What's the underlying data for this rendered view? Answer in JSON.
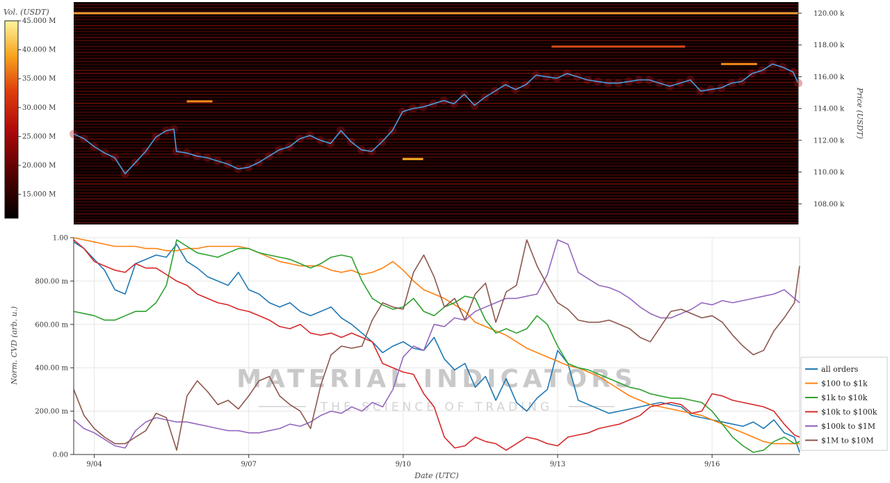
{
  "watermark": {
    "line1": "MATERIAL INDICATORS",
    "line2": "THE SCIENCE OF TRADING"
  },
  "colorbar": {
    "title": "Vol. (USDT)",
    "ticks": [
      "45.000 M",
      "40.000 M",
      "35.000 M",
      "30.000 M",
      "25.000 M",
      "20.000 M",
      "15.000 M"
    ]
  },
  "chart_data": [
    {
      "type": "heatmap",
      "ylabel": "Price (USDT)",
      "ylim": [
        106700,
        120700
      ],
      "yticks": [
        108000,
        110000,
        112000,
        114000,
        116000,
        118000,
        120000
      ],
      "ytick_labels": [
        "108.00 k",
        "110.00 k",
        "112.00 k",
        "114.00 k",
        "116.00 k",
        "118.00 k",
        "120.00 k"
      ],
      "xlim": [
        3.6,
        17.7
      ],
      "price_line": {
        "color": "#4a9de0",
        "x": [
          3.6,
          3.8,
          4.0,
          4.2,
          4.4,
          4.6,
          4.8,
          5.0,
          5.2,
          5.4,
          5.55,
          5.6,
          5.8,
          6.0,
          6.2,
          6.4,
          6.6,
          6.8,
          7.0,
          7.2,
          7.4,
          7.6,
          7.8,
          8.0,
          8.2,
          8.4,
          8.6,
          8.8,
          9.0,
          9.2,
          9.4,
          9.6,
          9.8,
          10.0,
          10.2,
          10.4,
          10.6,
          10.8,
          11.0,
          11.2,
          11.4,
          11.6,
          11.8,
          12.0,
          12.2,
          12.4,
          12.6,
          12.8,
          13.0,
          13.2,
          13.4,
          13.6,
          13.8,
          14.0,
          14.2,
          14.4,
          14.6,
          14.8,
          15.0,
          15.2,
          15.4,
          15.6,
          15.8,
          16.0,
          16.2,
          16.4,
          16.6,
          16.8,
          17.0,
          17.2,
          17.4,
          17.6,
          17.7
        ],
        "y": [
          112400,
          112100,
          111600,
          111200,
          110900,
          109900,
          110600,
          111300,
          112200,
          112600,
          112700,
          111300,
          111200,
          111000,
          110900,
          110700,
          110500,
          110200,
          110300,
          110600,
          111000,
          111400,
          111600,
          112100,
          112300,
          112000,
          111800,
          112600,
          111900,
          111400,
          111300,
          111900,
          112600,
          113800,
          114000,
          114100,
          114300,
          114500,
          114300,
          114900,
          114200,
          114700,
          115100,
          115500,
          115200,
          115500,
          116100,
          116000,
          115900,
          116200,
          116000,
          115800,
          115700,
          115600,
          115600,
          115700,
          115800,
          115800,
          115600,
          115400,
          115600,
          115800,
          115100,
          115200,
          115300,
          115600,
          115700,
          116200,
          116400,
          116800,
          116600,
          116300,
          115600
        ],
        "ylim": [
          106700,
          120700
        ]
      },
      "levels": [
        {
          "x": [
            5.8,
            6.3
          ],
          "y": 114450,
          "color": "#ff8c1a"
        },
        {
          "x": [
            10.0,
            10.4
          ],
          "y": 110820,
          "color": "#ffb020"
        },
        {
          "x": [
            16.2,
            16.9
          ],
          "y": 116800,
          "color": "#ff8c1a"
        },
        {
          "x": [
            3.6,
            17.7
          ],
          "y": 120000,
          "color": "#ff9a33"
        },
        {
          "x": [
            12.9,
            15.5
          ],
          "y": 117900,
          "color": "#d94a1a"
        }
      ]
    },
    {
      "type": "line",
      "xlabel": "Date (UTC)",
      "ylabel": "Norm. CVD (arb. u.)",
      "ylim": [
        0,
        1
      ],
      "xlim": [
        3.6,
        17.7
      ],
      "yticks": [
        0,
        0.2,
        0.4,
        0.6,
        0.8,
        1.0
      ],
      "ytick_labels": [
        "0.00",
        "200.00 m",
        "400.00 m",
        "600.00 m",
        "800.00 m",
        "1.00"
      ],
      "xticks": [
        4,
        7,
        10,
        13,
        16
      ],
      "xtick_labels": [
        "9/04",
        "9/07",
        "9/10",
        "9/13",
        "9/16"
      ],
      "grid": true,
      "legend_position": "bottom-right",
      "x": [
        3.6,
        3.8,
        4.0,
        4.2,
        4.4,
        4.6,
        4.8,
        5.0,
        5.2,
        5.4,
        5.6,
        5.8,
        6.0,
        6.2,
        6.4,
        6.6,
        6.8,
        7.0,
        7.2,
        7.4,
        7.6,
        7.8,
        8.0,
        8.2,
        8.4,
        8.6,
        8.8,
        9.0,
        9.2,
        9.4,
        9.6,
        9.8,
        10.0,
        10.2,
        10.4,
        10.6,
        10.8,
        11.0,
        11.2,
        11.4,
        11.6,
        11.8,
        12.0,
        12.2,
        12.4,
        12.6,
        12.8,
        13.0,
        13.2,
        13.4,
        13.6,
        13.8,
        14.0,
        14.2,
        14.4,
        14.6,
        14.8,
        15.0,
        15.2,
        15.4,
        15.6,
        15.8,
        16.0,
        16.2,
        16.4,
        16.6,
        16.8,
        17.0,
        17.2,
        17.4,
        17.6,
        17.7
      ],
      "series": [
        {
          "name": "all orders",
          "color": "#1f77b4",
          "values": [
            0.98,
            0.95,
            0.9,
            0.85,
            0.76,
            0.74,
            0.88,
            0.9,
            0.92,
            0.91,
            0.97,
            0.89,
            0.86,
            0.82,
            0.8,
            0.78,
            0.84,
            0.76,
            0.74,
            0.7,
            0.68,
            0.7,
            0.66,
            0.64,
            0.66,
            0.68,
            0.63,
            0.6,
            0.56,
            0.52,
            0.47,
            0.5,
            0.52,
            0.49,
            0.48,
            0.54,
            0.44,
            0.39,
            0.42,
            0.31,
            0.36,
            0.25,
            0.35,
            0.24,
            0.2,
            0.26,
            0.3,
            0.48,
            0.42,
            0.25,
            0.23,
            0.21,
            0.19,
            0.2,
            0.21,
            0.22,
            0.23,
            0.24,
            0.23,
            0.22,
            0.18,
            0.17,
            0.16,
            0.15,
            0.14,
            0.13,
            0.15,
            0.12,
            0.16,
            0.1,
            0.08,
            0.01
          ]
        },
        {
          "name": "$100 to $1k",
          "color": "#ff7f0e",
          "values": [
            1.0,
            0.99,
            0.98,
            0.97,
            0.96,
            0.96,
            0.96,
            0.95,
            0.95,
            0.94,
            0.94,
            0.95,
            0.95,
            0.96,
            0.96,
            0.96,
            0.96,
            0.95,
            0.93,
            0.91,
            0.89,
            0.88,
            0.87,
            0.87,
            0.87,
            0.85,
            0.84,
            0.85,
            0.83,
            0.84,
            0.86,
            0.89,
            0.85,
            0.8,
            0.76,
            0.74,
            0.72,
            0.69,
            0.66,
            0.61,
            0.59,
            0.57,
            0.55,
            0.52,
            0.49,
            0.47,
            0.45,
            0.43,
            0.41,
            0.4,
            0.38,
            0.36,
            0.33,
            0.3,
            0.27,
            0.25,
            0.23,
            0.22,
            0.21,
            0.2,
            0.19,
            0.18,
            0.16,
            0.14,
            0.12,
            0.1,
            0.08,
            0.06,
            0.05,
            0.05,
            0.05,
            0.05
          ]
        },
        {
          "name": "$1k to $10k",
          "color": "#2ca02c",
          "values": [
            0.66,
            0.65,
            0.64,
            0.62,
            0.62,
            0.64,
            0.66,
            0.66,
            0.7,
            0.78,
            0.99,
            0.96,
            0.93,
            0.92,
            0.91,
            0.93,
            0.95,
            0.95,
            0.93,
            0.92,
            0.91,
            0.9,
            0.88,
            0.86,
            0.88,
            0.91,
            0.92,
            0.91,
            0.8,
            0.72,
            0.69,
            0.67,
            0.68,
            0.72,
            0.66,
            0.64,
            0.68,
            0.7,
            0.73,
            0.72,
            0.62,
            0.56,
            0.58,
            0.56,
            0.58,
            0.64,
            0.6,
            0.5,
            0.42,
            0.4,
            0.39,
            0.37,
            0.35,
            0.33,
            0.31,
            0.3,
            0.28,
            0.27,
            0.26,
            0.26,
            0.25,
            0.24,
            0.2,
            0.14,
            0.08,
            0.04,
            0.01,
            0.02,
            0.06,
            0.08,
            0.05,
            0.06
          ]
        },
        {
          "name": "$10k to $100k",
          "color": "#d62728",
          "values": [
            0.99,
            0.95,
            0.89,
            0.87,
            0.85,
            0.84,
            0.88,
            0.86,
            0.86,
            0.83,
            0.8,
            0.78,
            0.74,
            0.72,
            0.7,
            0.69,
            0.67,
            0.66,
            0.64,
            0.62,
            0.59,
            0.58,
            0.6,
            0.56,
            0.55,
            0.56,
            0.54,
            0.56,
            0.54,
            0.52,
            0.42,
            0.4,
            0.38,
            0.37,
            0.28,
            0.22,
            0.08,
            0.03,
            0.04,
            0.08,
            0.06,
            0.05,
            0.02,
            0.05,
            0.08,
            0.07,
            0.05,
            0.04,
            0.08,
            0.09,
            0.1,
            0.12,
            0.13,
            0.14,
            0.16,
            0.18,
            0.22,
            0.23,
            0.24,
            0.23,
            0.19,
            0.2,
            0.28,
            0.27,
            0.25,
            0.24,
            0.23,
            0.22,
            0.2,
            0.14,
            0.09,
            0.08
          ]
        },
        {
          "name": "$100k to $1M",
          "color": "#9467bd",
          "values": [
            0.16,
            0.12,
            0.1,
            0.07,
            0.04,
            0.03,
            0.11,
            0.15,
            0.17,
            0.16,
            0.15,
            0.15,
            0.14,
            0.13,
            0.12,
            0.11,
            0.11,
            0.1,
            0.1,
            0.11,
            0.12,
            0.14,
            0.13,
            0.15,
            0.18,
            0.2,
            0.19,
            0.22,
            0.2,
            0.24,
            0.22,
            0.3,
            0.45,
            0.5,
            0.48,
            0.6,
            0.59,
            0.63,
            0.62,
            0.66,
            0.68,
            0.7,
            0.72,
            0.72,
            0.73,
            0.74,
            0.83,
            0.99,
            0.97,
            0.84,
            0.81,
            0.78,
            0.77,
            0.75,
            0.72,
            0.68,
            0.65,
            0.63,
            0.63,
            0.65,
            0.67,
            0.7,
            0.69,
            0.71,
            0.7,
            0.71,
            0.72,
            0.73,
            0.74,
            0.76,
            0.72,
            0.7
          ]
        },
        {
          "name": "$1M to $10M",
          "color": "#8c564b",
          "values": [
            0.3,
            0.18,
            0.12,
            0.08,
            0.05,
            0.05,
            0.08,
            0.11,
            0.19,
            0.17,
            0.02,
            0.27,
            0.34,
            0.29,
            0.23,
            0.25,
            0.21,
            0.27,
            0.34,
            0.36,
            0.27,
            0.23,
            0.2,
            0.12,
            0.32,
            0.46,
            0.5,
            0.49,
            0.5,
            0.62,
            0.7,
            0.68,
            0.67,
            0.84,
            0.92,
            0.82,
            0.68,
            0.72,
            0.62,
            0.74,
            0.79,
            0.61,
            0.75,
            0.78,
            0.99,
            0.87,
            0.78,
            0.7,
            0.67,
            0.62,
            0.61,
            0.61,
            0.62,
            0.6,
            0.58,
            0.54,
            0.52,
            0.59,
            0.66,
            0.67,
            0.65,
            0.63,
            0.64,
            0.61,
            0.55,
            0.5,
            0.46,
            0.48,
            0.57,
            0.63,
            0.7,
            0.87
          ]
        }
      ]
    }
  ]
}
